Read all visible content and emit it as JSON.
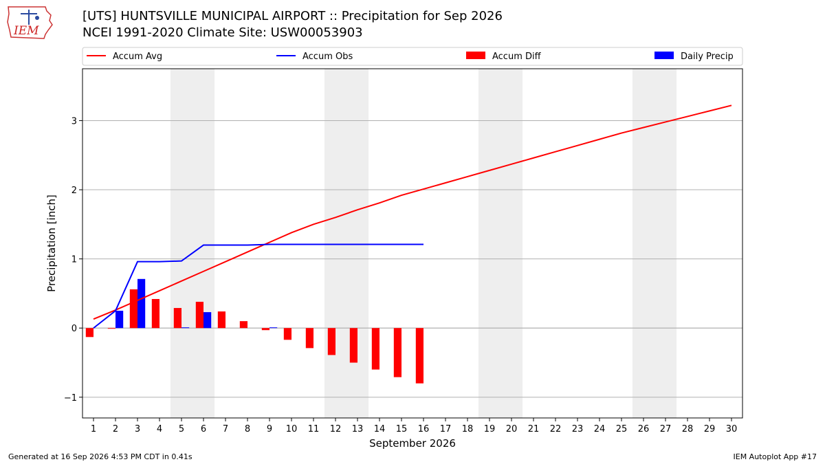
{
  "header": {
    "title_line1": "[UTS] HUNTSVILLE MUNICIPAL AIRPORT :: Precipitation for Sep 2026",
    "title_line2": "NCEI 1991-2020 Climate Site: USW00053903"
  },
  "logo": {
    "text": "IEM",
    "icon": "iem-iowa-logo"
  },
  "footer": {
    "left": "Generated at 16 Sep 2026 4:53 PM CDT in 0.41s",
    "right": "IEM Autoplot App #17"
  },
  "colors": {
    "avg": "#ff0000",
    "obs": "#0000ff",
    "weekend_shade": "#eeeeee",
    "grid": "#b0b0b0"
  },
  "chart_data": {
    "type": "bar",
    "xlabel": "September 2026",
    "ylabel": "Precipitation [inch]",
    "xlim": [
      0.5,
      30.5
    ],
    "ylim": [
      -1.3,
      3.75
    ],
    "yticks": [
      -1,
      0,
      1,
      2,
      3
    ],
    "ytick_labels": [
      "−1",
      "0",
      "1",
      "2",
      "3"
    ],
    "x": [
      1,
      2,
      3,
      4,
      5,
      6,
      7,
      8,
      9,
      10,
      11,
      12,
      13,
      14,
      15,
      16,
      17,
      18,
      19,
      20,
      21,
      22,
      23,
      24,
      25,
      26,
      27,
      28,
      29,
      30
    ],
    "grid": "horizontal",
    "legend_placement": "top",
    "shaded_days": [
      [
        5,
        6
      ],
      [
        12,
        13
      ],
      [
        19,
        20
      ],
      [
        26,
        27
      ]
    ],
    "series": [
      {
        "name": "Accum Avg",
        "kind": "line",
        "color": "#ff0000",
        "values": [
          0.13,
          0.26,
          0.4,
          0.54,
          0.68,
          0.82,
          0.96,
          1.1,
          1.24,
          1.38,
          1.5,
          1.6,
          1.71,
          1.81,
          1.92,
          2.01,
          2.1,
          2.19,
          2.28,
          2.37,
          2.46,
          2.55,
          2.64,
          2.73,
          2.82,
          2.9,
          2.98,
          3.06,
          3.14,
          3.22
        ]
      },
      {
        "name": "Accum Obs",
        "kind": "line",
        "color": "#0000ff",
        "x": [
          1,
          2,
          3,
          4,
          5,
          6,
          7,
          8,
          9,
          10,
          11,
          12,
          13,
          14,
          15,
          16
        ],
        "values": [
          0.0,
          0.25,
          0.96,
          0.96,
          0.97,
          1.2,
          1.2,
          1.2,
          1.21,
          1.21,
          1.21,
          1.21,
          1.21,
          1.21,
          1.21,
          1.21
        ]
      },
      {
        "name": "Accum Diff",
        "kind": "bar",
        "color": "#ff0000",
        "x": [
          1,
          2,
          3,
          4,
          5,
          6,
          7,
          8,
          9,
          10,
          11,
          12,
          13,
          14,
          15,
          16
        ],
        "values": [
          -0.13,
          -0.01,
          0.56,
          0.42,
          0.29,
          0.38,
          0.24,
          0.1,
          -0.03,
          -0.17,
          -0.29,
          -0.39,
          -0.5,
          -0.6,
          -0.71,
          -0.8
        ]
      },
      {
        "name": "Daily Precip",
        "kind": "bar",
        "color": "#0000ff",
        "x": [
          1,
          2,
          3,
          4,
          5,
          6,
          7,
          8,
          9,
          10,
          11,
          12,
          13,
          14,
          15,
          16
        ],
        "values": [
          0.0,
          0.25,
          0.71,
          0.0,
          0.01,
          0.23,
          0.0,
          0.0,
          0.01,
          0.0,
          0.0,
          0.0,
          0.0,
          0.0,
          0.0,
          0.0
        ]
      }
    ]
  }
}
